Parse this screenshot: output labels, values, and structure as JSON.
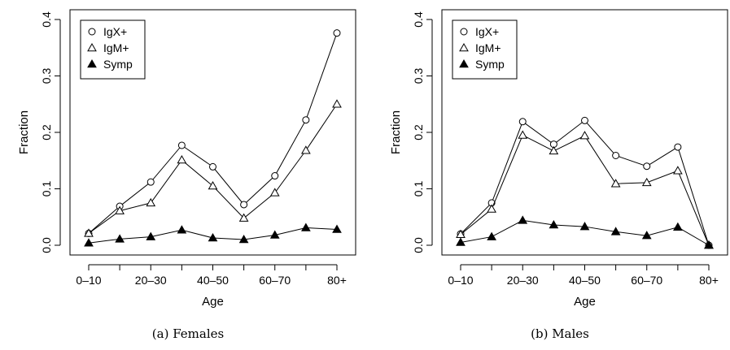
{
  "chart_data": [
    {
      "type": "line",
      "caption": "(a)  Females",
      "xlabel": "Age",
      "ylabel": "Fraction",
      "x": [
        1,
        2,
        3,
        4,
        5,
        6,
        7,
        8,
        9
      ],
      "xtick_labels": [
        {
          "x": 1,
          "label": "0–10"
        },
        {
          "x": 3,
          "label": "20–30"
        },
        {
          "x": 5,
          "label": "40–50"
        },
        {
          "x": 7,
          "label": "60–70"
        },
        {
          "x": 9,
          "label": "80+"
        }
      ],
      "ylim": [
        0,
        0.4
      ],
      "yticks": [
        "0.0",
        "0.1",
        "0.2",
        "0.3",
        "0.4"
      ],
      "legend_position": "top-left",
      "series": [
        {
          "name": "IgX+",
          "marker": "circle",
          "values": [
            0.021,
            0.069,
            0.112,
            0.177,
            0.139,
            0.072,
            0.123,
            0.222,
            0.376
          ]
        },
        {
          "name": "IgM+",
          "marker": "triangle-open",
          "values": [
            0.021,
            0.061,
            0.075,
            0.151,
            0.105,
            0.048,
            0.093,
            0.168,
            0.25
          ]
        },
        {
          "name": "Symp",
          "marker": "triangle-filled",
          "values": [
            0.004,
            0.011,
            0.015,
            0.027,
            0.013,
            0.01,
            0.018,
            0.031,
            0.028
          ]
        }
      ]
    },
    {
      "type": "line",
      "caption": "(b)  Males",
      "xlabel": "Age",
      "ylabel": "Fraction",
      "x": [
        1,
        2,
        3,
        4,
        5,
        6,
        7,
        8,
        9
      ],
      "xtick_labels": [
        {
          "x": 1,
          "label": "0–10"
        },
        {
          "x": 3,
          "label": "20–30"
        },
        {
          "x": 5,
          "label": "40–50"
        },
        {
          "x": 7,
          "label": "60–70"
        },
        {
          "x": 9,
          "label": "80+"
        }
      ],
      "ylim": [
        0,
        0.4
      ],
      "yticks": [
        "0.0",
        "0.1",
        "0.2",
        "0.3",
        "0.4"
      ],
      "legend_position": "top-left",
      "series": [
        {
          "name": "IgX+",
          "marker": "circle",
          "values": [
            0.02,
            0.075,
            0.219,
            0.179,
            0.221,
            0.159,
            0.14,
            0.174,
            0.0
          ]
        },
        {
          "name": "IgM+",
          "marker": "triangle-open",
          "values": [
            0.019,
            0.064,
            0.195,
            0.167,
            0.194,
            0.109,
            0.111,
            0.132,
            0.0
          ]
        },
        {
          "name": "Symp",
          "marker": "triangle-filled",
          "values": [
            0.005,
            0.015,
            0.044,
            0.036,
            0.033,
            0.024,
            0.017,
            0.032,
            0.0
          ]
        }
      ]
    }
  ]
}
